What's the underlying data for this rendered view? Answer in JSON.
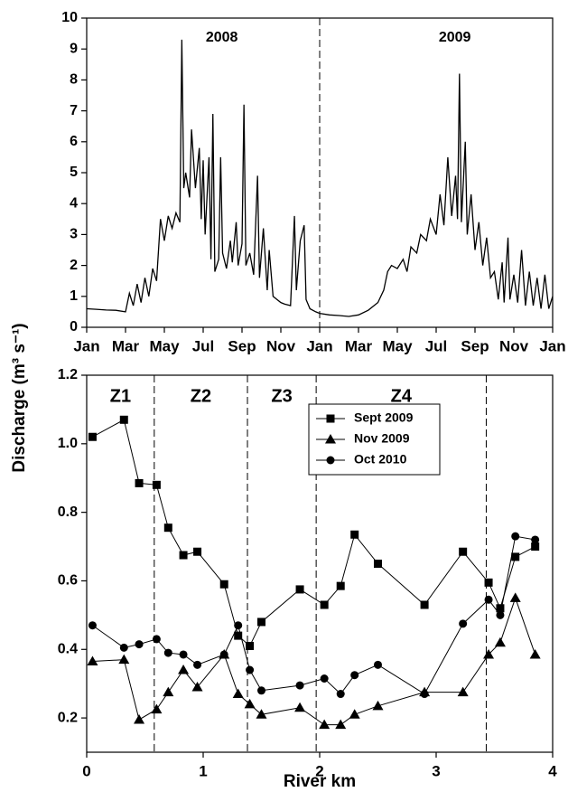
{
  "chart_data": [
    {
      "type": "line",
      "y_label": "Discharge (m³ s⁻¹)",
      "annotations": [
        "2008",
        "2009"
      ],
      "x": [
        0,
        0.5,
        1,
        1.5,
        2,
        2.2,
        2.4,
        2.6,
        2.8,
        3.0,
        3.2,
        3.4,
        3.6,
        3.8,
        4.0,
        4.2,
        4.4,
        4.6,
        4.8,
        4.9,
        5.0,
        5.1,
        5.3,
        5.4,
        5.6,
        5.8,
        5.9,
        6.0,
        6.1,
        6.3,
        6.4,
        6.5,
        6.6,
        6.8,
        6.9,
        7.0,
        7.2,
        7.4,
        7.5,
        7.7,
        7.8,
        8.0,
        8.1,
        8.2,
        8.4,
        8.6,
        8.8,
        8.9,
        9.1,
        9.3,
        9.4,
        9.6,
        9.8,
        10.0,
        10.2,
        10.5,
        10.7,
        10.8,
        11.0,
        11.2,
        11.3,
        11.5,
        11.8,
        12.0,
        12.5,
        13,
        13.5,
        14,
        14.5,
        15.0,
        15.3,
        15.5,
        15.7,
        16.0,
        16.3,
        16.5,
        16.7,
        17.0,
        17.2,
        17.5,
        17.7,
        18.0,
        18.2,
        18.4,
        18.6,
        18.8,
        19.0,
        19.1,
        19.2,
        19.3,
        19.5,
        19.6,
        19.8,
        20.0,
        20.2,
        20.4,
        20.6,
        20.8,
        21.0,
        21.2,
        21.4,
        21.5,
        21.7,
        21.8,
        22.0,
        22.2,
        22.4,
        22.6,
        22.8,
        23.0,
        23.2,
        23.4,
        23.6,
        23.8,
        24.0
      ],
      "values": [
        0.6,
        0.58,
        0.56,
        0.55,
        0.5,
        1.1,
        0.7,
        1.4,
        0.8,
        1.6,
        1.0,
        1.9,
        1.5,
        3.5,
        2.8,
        3.6,
        3.2,
        3.7,
        3.4,
        9.3,
        4.5,
        5.0,
        4.2,
        6.4,
        4.5,
        5.8,
        3.5,
        5.4,
        3.0,
        5.5,
        2.2,
        6.9,
        1.8,
        2.2,
        5.5,
        2.4,
        1.9,
        2.8,
        2.1,
        3.4,
        2.0,
        2.7,
        7.2,
        2.0,
        2.4,
        1.7,
        4.9,
        1.6,
        3.2,
        1.2,
        2.5,
        1.0,
        0.9,
        0.8,
        0.75,
        0.7,
        3.6,
        1.2,
        2.8,
        3.3,
        0.9,
        0.6,
        0.5,
        0.45,
        0.4,
        0.38,
        0.35,
        0.4,
        0.55,
        0.8,
        1.2,
        1.8,
        2.0,
        1.9,
        2.2,
        1.8,
        2.6,
        2.4,
        3.0,
        2.8,
        3.5,
        3.0,
        4.3,
        3.3,
        5.5,
        3.6,
        4.9,
        3.5,
        8.2,
        3.4,
        6.0,
        3.0,
        4.3,
        2.5,
        3.4,
        2.0,
        2.9,
        1.6,
        1.8,
        0.9,
        2.1,
        0.8,
        2.9,
        0.9,
        1.7,
        0.8,
        2.5,
        0.7,
        1.8,
        0.7,
        1.6,
        0.6,
        1.7,
        0.6,
        1.0
      ],
      "color": "#000000",
      "vlines": [
        12
      ],
      "xlim": [
        0,
        24
      ],
      "xticks": [
        {
          "value": 0,
          "label": "Jan"
        },
        {
          "value": 2,
          "label": "Mar"
        },
        {
          "value": 4,
          "label": "May"
        },
        {
          "value": 6,
          "label": "Jul"
        },
        {
          "value": 8,
          "label": "Sep"
        },
        {
          "value": 10,
          "label": "Nov"
        },
        {
          "value": 12,
          "label": "Jan"
        },
        {
          "value": 14,
          "label": "Mar"
        },
        {
          "value": 16,
          "label": "May"
        },
        {
          "value": 18,
          "label": "Jul"
        },
        {
          "value": 20,
          "label": "Sep"
        },
        {
          "value": 22,
          "label": "Nov"
        },
        {
          "value": 24,
          "label": "Jan"
        }
      ],
      "ylim": [
        0,
        10
      ],
      "yticks": [
        0,
        1,
        2,
        3,
        4,
        5,
        6,
        7,
        8,
        9,
        10
      ]
    },
    {
      "type": "line",
      "x_label": "River km",
      "zone_labels": [
        "Z1",
        "Z2",
        "Z3",
        "Z4"
      ],
      "zone_boundaries": [
        0.58,
        1.38,
        1.97,
        3.43
      ],
      "legend": "upper right",
      "x": [
        0.05,
        0.32,
        0.45,
        0.6,
        0.7,
        0.83,
        0.95,
        1.18,
        1.3,
        1.4,
        1.5,
        1.83,
        2.04,
        2.18,
        2.3,
        2.5,
        2.9,
        3.23,
        3.45,
        3.55,
        3.68,
        3.85
      ],
      "series": [
        {
          "name": "Sept 2009",
          "color": "#000000",
          "marker": "square",
          "values": [
            1.02,
            1.07,
            0.885,
            0.88,
            0.755,
            0.675,
            0.685,
            0.59,
            0.44,
            0.41,
            0.48,
            0.575,
            0.53,
            0.585,
            0.735,
            0.65,
            0.53,
            0.685,
            0.595,
            0.52,
            0.67,
            0.7
          ]
        },
        {
          "name": "Nov 2009",
          "color": "#000000",
          "marker": "triangle",
          "values": [
            0.365,
            0.37,
            0.195,
            0.225,
            0.275,
            0.34,
            0.29,
            0.385,
            0.27,
            0.24,
            0.21,
            0.23,
            0.18,
            0.18,
            0.21,
            0.235,
            0.275,
            0.275,
            0.385,
            0.42,
            0.55,
            0.385
          ]
        },
        {
          "name": "Oct 2010",
          "color": "#000000",
          "marker": "circle",
          "values": [
            0.47,
            0.405,
            0.415,
            0.43,
            0.39,
            0.385,
            0.355,
            0.385,
            0.47,
            0.34,
            0.28,
            0.295,
            0.315,
            0.27,
            0.325,
            0.355,
            0.27,
            0.475,
            0.545,
            0.5,
            0.73,
            0.72
          ]
        }
      ],
      "xlim": [
        0,
        4
      ],
      "xticks": [
        0,
        1,
        2,
        3,
        4
      ],
      "ylim": [
        0.1,
        1.2
      ],
      "yticks": [
        0.2,
        0.4,
        0.6,
        0.8,
        {
          "value": 1,
          "label": "1.0"
        },
        1.2
      ]
    }
  ]
}
